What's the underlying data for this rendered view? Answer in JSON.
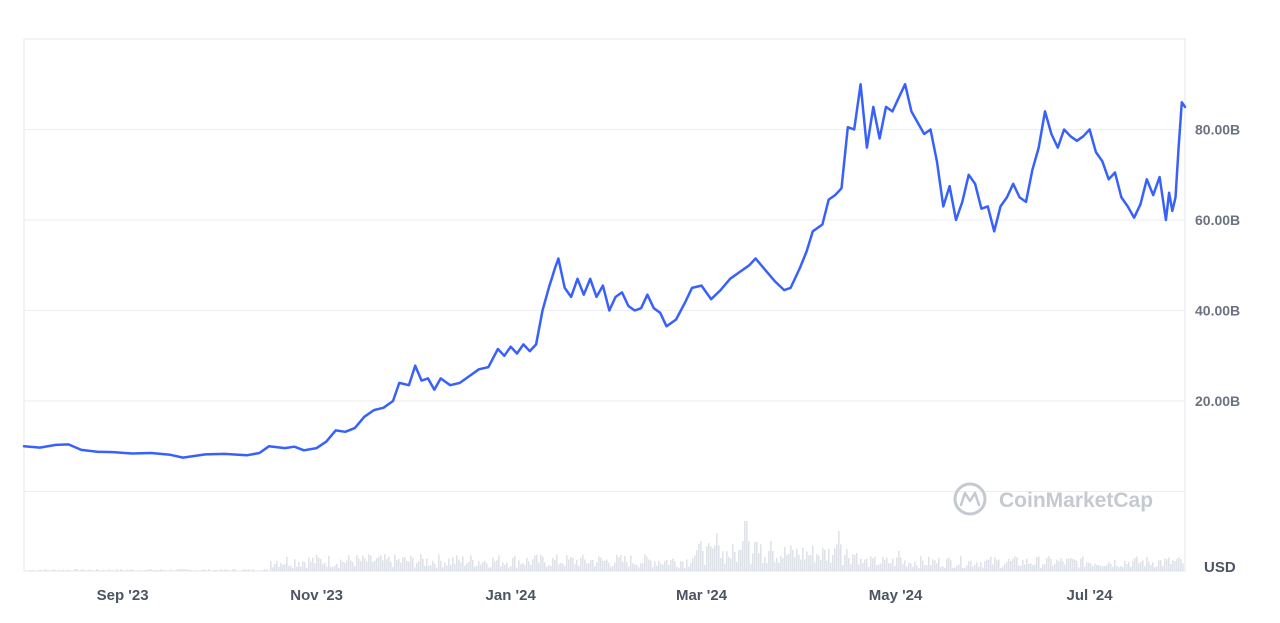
{
  "chart_data": {
    "type": "line",
    "currency_label": "USD",
    "watermark": "CoinMarketCap",
    "y_ticks": [
      {
        "value": 20,
        "label": "20.00B"
      },
      {
        "value": 40,
        "label": "40.00B"
      },
      {
        "value": 60,
        "label": "60.00B"
      },
      {
        "value": 80,
        "label": "80.00B"
      }
    ],
    "x_ticks": [
      {
        "date": "2023-09-01",
        "label": "Sep '23"
      },
      {
        "date": "2023-11-01",
        "label": "Nov '23"
      },
      {
        "date": "2024-01-01",
        "label": "Jan '24"
      },
      {
        "date": "2024-03-01",
        "label": "Mar '24"
      },
      {
        "date": "2024-05-01",
        "label": "May '24"
      },
      {
        "date": "2024-07-01",
        "label": "Jul '24"
      }
    ],
    "x_range": [
      "2023-08-01",
      "2024-07-31"
    ],
    "ylim": [
      0,
      100
    ],
    "line_color": "#3861fb",
    "series": [
      {
        "values": [
          [
            "2023-08-01",
            10.0
          ],
          [
            "2023-08-06",
            9.7
          ],
          [
            "2023-08-11",
            10.3
          ],
          [
            "2023-08-15",
            10.4
          ],
          [
            "2023-08-19",
            9.2
          ],
          [
            "2023-08-24",
            8.8
          ],
          [
            "2023-08-29",
            8.7
          ],
          [
            "2023-09-04",
            8.4
          ],
          [
            "2023-09-10",
            8.5
          ],
          [
            "2023-09-16",
            8.1
          ],
          [
            "2023-09-20",
            7.5
          ],
          [
            "2023-09-27",
            8.2
          ],
          [
            "2023-10-03",
            8.3
          ],
          [
            "2023-10-10",
            8.0
          ],
          [
            "2023-10-14",
            8.5
          ],
          [
            "2023-10-17",
            10.0
          ],
          [
            "2023-10-22",
            9.6
          ],
          [
            "2023-10-25",
            9.9
          ],
          [
            "2023-10-28",
            9.1
          ],
          [
            "2023-11-01",
            9.6
          ],
          [
            "2023-11-04",
            11.0
          ],
          [
            "2023-11-07",
            13.5
          ],
          [
            "2023-11-10",
            13.2
          ],
          [
            "2023-11-13",
            14.0
          ],
          [
            "2023-11-16",
            16.5
          ],
          [
            "2023-11-19",
            18.0
          ],
          [
            "2023-11-22",
            18.5
          ],
          [
            "2023-11-25",
            20.0
          ],
          [
            "2023-11-27",
            24.0
          ],
          [
            "2023-11-30",
            23.5
          ],
          [
            "2023-12-02",
            27.8
          ],
          [
            "2023-12-04",
            24.5
          ],
          [
            "2023-12-06",
            25.0
          ],
          [
            "2023-12-08",
            22.5
          ],
          [
            "2023-12-10",
            25.0
          ],
          [
            "2023-12-13",
            23.5
          ],
          [
            "2023-12-16",
            24.0
          ],
          [
            "2023-12-19",
            25.5
          ],
          [
            "2023-12-22",
            27.0
          ],
          [
            "2023-12-25",
            27.5
          ],
          [
            "2023-12-28",
            31.5
          ],
          [
            "2023-12-30",
            30.0
          ],
          [
            "2024-01-01",
            32.0
          ],
          [
            "2024-01-03",
            30.5
          ],
          [
            "2024-01-05",
            32.5
          ],
          [
            "2024-01-07",
            31.0
          ],
          [
            "2024-01-09",
            32.5
          ],
          [
            "2024-01-11",
            40.0
          ],
          [
            "2024-01-13",
            45.0
          ],
          [
            "2024-01-15",
            49.5
          ],
          [
            "2024-01-16",
            51.5
          ],
          [
            "2024-01-18",
            45.0
          ],
          [
            "2024-01-20",
            43.0
          ],
          [
            "2024-01-22",
            47.0
          ],
          [
            "2024-01-24",
            43.5
          ],
          [
            "2024-01-26",
            47.0
          ],
          [
            "2024-01-28",
            43.0
          ],
          [
            "2024-01-30",
            45.5
          ],
          [
            "2024-02-01",
            40.0
          ],
          [
            "2024-02-03",
            43.0
          ],
          [
            "2024-02-05",
            44.0
          ],
          [
            "2024-02-07",
            41.0
          ],
          [
            "2024-02-09",
            40.0
          ],
          [
            "2024-02-11",
            40.5
          ],
          [
            "2024-02-13",
            43.5
          ],
          [
            "2024-02-15",
            40.5
          ],
          [
            "2024-02-17",
            39.5
          ],
          [
            "2024-02-19",
            36.5
          ],
          [
            "2024-02-22",
            38.0
          ],
          [
            "2024-02-25",
            42.0
          ],
          [
            "2024-02-27",
            45.0
          ],
          [
            "2024-03-01",
            45.5
          ],
          [
            "2024-03-04",
            42.5
          ],
          [
            "2024-03-07",
            44.5
          ],
          [
            "2024-03-10",
            47.0
          ],
          [
            "2024-03-13",
            48.5
          ],
          [
            "2024-03-16",
            50.0
          ],
          [
            "2024-03-18",
            51.5
          ],
          [
            "2024-03-21",
            49.0
          ],
          [
            "2024-03-24",
            46.5
          ],
          [
            "2024-03-27",
            44.5
          ],
          [
            "2024-03-29",
            45.0
          ],
          [
            "2024-04-01",
            49.5
          ],
          [
            "2024-04-03",
            53.0
          ],
          [
            "2024-04-05",
            57.5
          ],
          [
            "2024-04-08",
            59.0
          ],
          [
            "2024-04-10",
            64.5
          ],
          [
            "2024-04-12",
            65.5
          ],
          [
            "2024-04-14",
            67.0
          ],
          [
            "2024-04-16",
            80.5
          ],
          [
            "2024-04-18",
            80.0
          ],
          [
            "2024-04-20",
            90.0
          ],
          [
            "2024-04-22",
            76.0
          ],
          [
            "2024-04-24",
            85.0
          ],
          [
            "2024-04-26",
            78.0
          ],
          [
            "2024-04-28",
            85.0
          ],
          [
            "2024-04-30",
            84.0
          ],
          [
            "2024-05-02",
            87.0
          ],
          [
            "2024-05-04",
            90.0
          ],
          [
            "2024-05-06",
            84.0
          ],
          [
            "2024-05-08",
            81.5
          ],
          [
            "2024-05-10",
            79.0
          ],
          [
            "2024-05-12",
            80.0
          ],
          [
            "2024-05-14",
            73.0
          ],
          [
            "2024-05-16",
            63.0
          ],
          [
            "2024-05-18",
            67.5
          ],
          [
            "2024-05-20",
            60.0
          ],
          [
            "2024-05-22",
            64.0
          ],
          [
            "2024-05-24",
            70.0
          ],
          [
            "2024-05-26",
            68.0
          ],
          [
            "2024-05-28",
            62.5
          ],
          [
            "2024-05-30",
            63.0
          ],
          [
            "2024-06-01",
            57.5
          ],
          [
            "2024-06-03",
            63.0
          ],
          [
            "2024-06-05",
            65.0
          ],
          [
            "2024-06-07",
            68.0
          ],
          [
            "2024-06-09",
            65.0
          ],
          [
            "2024-06-11",
            64.0
          ],
          [
            "2024-06-13",
            71.0
          ],
          [
            "2024-06-15",
            76.0
          ],
          [
            "2024-06-17",
            84.0
          ],
          [
            "2024-06-19",
            79.0
          ],
          [
            "2024-06-21",
            76.0
          ],
          [
            "2024-06-23",
            80.0
          ],
          [
            "2024-06-25",
            78.5
          ],
          [
            "2024-06-27",
            77.5
          ],
          [
            "2024-06-29",
            78.5
          ],
          [
            "2024-07-01",
            80.0
          ],
          [
            "2024-07-03",
            75.0
          ],
          [
            "2024-07-05",
            73.0
          ],
          [
            "2024-07-07",
            69.0
          ],
          [
            "2024-07-09",
            70.5
          ],
          [
            "2024-07-11",
            65.0
          ],
          [
            "2024-07-13",
            63.0
          ],
          [
            "2024-07-15",
            60.5
          ],
          [
            "2024-07-17",
            63.5
          ],
          [
            "2024-07-19",
            69.0
          ],
          [
            "2024-07-21",
            65.5
          ],
          [
            "2024-07-23",
            69.5
          ],
          [
            "2024-07-25",
            60.0
          ],
          [
            "2024-07-26",
            66.0
          ],
          [
            "2024-07-27",
            62.0
          ],
          [
            "2024-07-28",
            65.0
          ],
          [
            "2024-07-29",
            76.0
          ],
          [
            "2024-07-30",
            86.0
          ],
          [
            "2024-07-31",
            85.0
          ]
        ]
      }
    ]
  }
}
